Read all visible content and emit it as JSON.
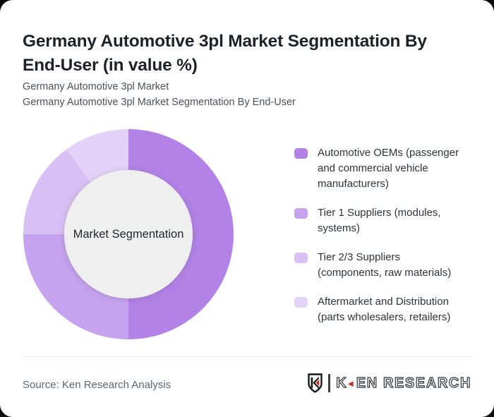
{
  "page": {
    "background": "#0b0b0b",
    "card_color": "#ffffff"
  },
  "header": {
    "title": "Germany Automotive 3pl Market Segmentation By End-User (in value %)",
    "subtitle_line1": "Germany Automotive 3pl Market",
    "subtitle_line2": "Germany Automotive 3pl Market Segmentation By End-User"
  },
  "chart_data": {
    "type": "pie",
    "variant": "donut",
    "title": "Germany Automotive 3pl Market Segmentation By End-User (in value %)",
    "center_label": "Market Segmentation",
    "unit": "value %",
    "start_angle_deg": 0,
    "direction": "clockwise",
    "legend_position": "right",
    "hole_color": "#efefef",
    "series": [
      {
        "name": "Automotive OEMs (passenger and commercial vehicle manufacturers)",
        "value": 50,
        "color": "#b282e7"
      },
      {
        "name": "Tier 1 Suppliers (modules, systems)",
        "value": 25,
        "color": "#c6a2ef"
      },
      {
        "name": "Tier 2/3 Suppliers (components, raw materials)",
        "value": 15,
        "color": "#d9c0f4"
      },
      {
        "name": "Aftermarket and Distribution (parts wholesalers, retailers)",
        "value": 10,
        "color": "#e3d2f8"
      }
    ]
  },
  "footer": {
    "source": "Source: Ken Research Analysis",
    "logo": {
      "emblem": "ken-research-shield",
      "text_k": "K",
      "triangle": "◄",
      "text_rest": "EN RESEARCH"
    }
  }
}
